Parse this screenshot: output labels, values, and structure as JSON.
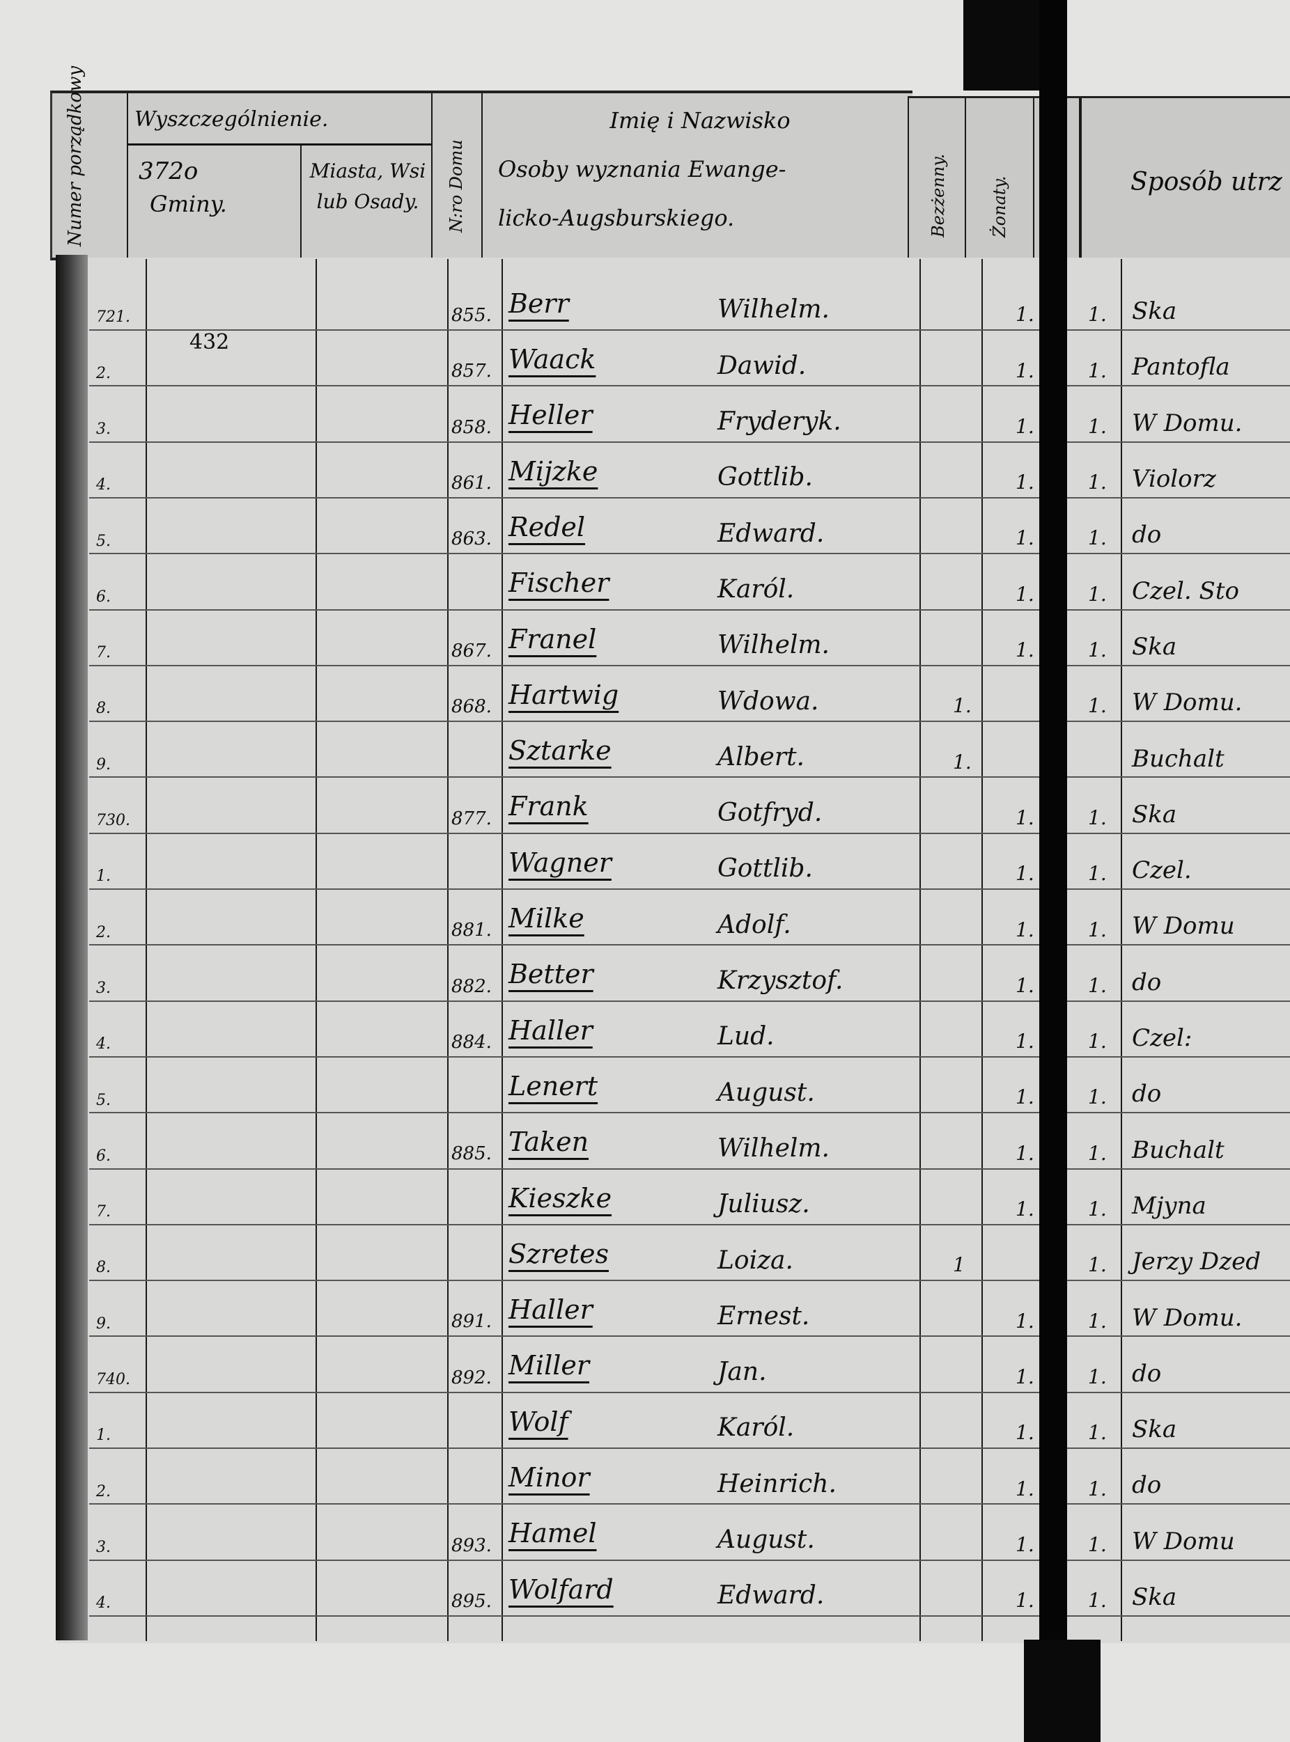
{
  "header": {
    "numer_porzadkowy": "Numer porządkowy",
    "wyszczegolnienie": "Wyszczególnienie.",
    "stamp_number": "372o",
    "gminy": "Gminy.",
    "miasta": "Miasta, Wsi lub Osady.",
    "nr_domu": "N:ro Domu",
    "imie_line1": "Imię i Nazwisko",
    "imie_line2": "Osoby wyznania Ewange-",
    "imie_line3": "licko-Augsburskiego.",
    "bezzenny": "Bezżenny.",
    "zonaty": "Żonaty.",
    "sposob": "Sposób utrz"
  },
  "annotation": "432",
  "rows": [
    {
      "num": "721.",
      "house": "855.",
      "surname": "Berr",
      "given": "Wilhelm.",
      "bezzenny": "",
      "zonaty": "1.",
      "col3": "1.",
      "occupation": "Ska"
    },
    {
      "num": "2.",
      "house": "857.",
      "surname": "Waack",
      "given": "Dawid.",
      "bezzenny": "",
      "zonaty": "1.",
      "col3": "1.",
      "occupation": "Pantofla"
    },
    {
      "num": "3.",
      "house": "858.",
      "surname": "Heller",
      "given": "Fryderyk.",
      "bezzenny": "",
      "zonaty": "1.",
      "col3": "1.",
      "occupation": "W Domu."
    },
    {
      "num": "4.",
      "house": "861.",
      "surname": "Mijzke",
      "given": "Gottlib.",
      "bezzenny": "",
      "zonaty": "1.",
      "col3": "1.",
      "occupation": "Violorz"
    },
    {
      "num": "5.",
      "house": "863.",
      "surname": "Redel",
      "given": "Edward.",
      "bezzenny": "",
      "zonaty": "1.",
      "col3": "1.",
      "occupation": "do"
    },
    {
      "num": "6.",
      "house": "",
      "surname": "Fischer",
      "given": "Karól.",
      "bezzenny": "",
      "zonaty": "1.",
      "col3": "1.",
      "occupation": "Czel. Sto"
    },
    {
      "num": "7.",
      "house": "867.",
      "surname": "Franel",
      "given": "Wilhelm.",
      "bezzenny": "",
      "zonaty": "1.",
      "col3": "1.",
      "occupation": "Ska"
    },
    {
      "num": "8.",
      "house": "868.",
      "surname": "Hartwig",
      "given": "Wdowa.",
      "bezzenny": "1.",
      "zonaty": "",
      "col3": "1.",
      "occupation": "W Domu."
    },
    {
      "num": "9.",
      "house": "",
      "surname": "Sztarke",
      "given": "Albert.",
      "bezzenny": "1.",
      "zonaty": "",
      "col3": "",
      "occupation": "Buchalt"
    },
    {
      "num": "730.",
      "house": "877.",
      "surname": "Frank",
      "given": "Gotfryd.",
      "bezzenny": "",
      "zonaty": "1.",
      "col3": "1.",
      "occupation": "Ska"
    },
    {
      "num": "1.",
      "house": "",
      "surname": "Wagner",
      "given": "Gottlib.",
      "bezzenny": "",
      "zonaty": "1.",
      "col3": "1.",
      "occupation": "Czel."
    },
    {
      "num": "2.",
      "house": "881.",
      "surname": "Milke",
      "given": "Adolf.",
      "bezzenny": "",
      "zonaty": "1.",
      "col3": "1.",
      "occupation": "W Domu"
    },
    {
      "num": "3.",
      "house": "882.",
      "surname": "Better",
      "given": "Krzysztof.",
      "bezzenny": "",
      "zonaty": "1.",
      "col3": "1.",
      "occupation": "do"
    },
    {
      "num": "4.",
      "house": "884.",
      "surname": "Haller",
      "given": "Lud.",
      "bezzenny": "",
      "zonaty": "1.",
      "col3": "1.",
      "occupation": "Czel:"
    },
    {
      "num": "5.",
      "house": "",
      "surname": "Lenert",
      "given": "August.",
      "bezzenny": "",
      "zonaty": "1.",
      "col3": "1.",
      "occupation": "do"
    },
    {
      "num": "6.",
      "house": "885.",
      "surname": "Taken",
      "given": "Wilhelm.",
      "bezzenny": "",
      "zonaty": "1.",
      "col3": "1.",
      "occupation": "Buchalt"
    },
    {
      "num": "7.",
      "house": "",
      "surname": "Kieszke",
      "given": "Juliusz.",
      "bezzenny": "",
      "zonaty": "1.",
      "col3": "1.",
      "occupation": "Mjyna"
    },
    {
      "num": "8.",
      "house": "",
      "surname": "Szretes",
      "given": "Loiza.",
      "bezzenny": "1",
      "zonaty": "",
      "col3": "1.",
      "occupation": "Jerzy Dzed"
    },
    {
      "num": "9.",
      "house": "891.",
      "surname": "Haller",
      "given": "Ernest.",
      "bezzenny": "",
      "zonaty": "1.",
      "col3": "1.",
      "occupation": "W Domu."
    },
    {
      "num": "740.",
      "house": "892.",
      "surname": "Miller",
      "given": "Jan.",
      "bezzenny": "",
      "zonaty": "1.",
      "col3": "1.",
      "occupation": "do"
    },
    {
      "num": "1.",
      "house": "",
      "surname": "Wolf",
      "given": "Karól.",
      "bezzenny": "",
      "zonaty": "1.",
      "col3": "1.",
      "occupation": "Ska"
    },
    {
      "num": "2.",
      "house": "",
      "surname": "Minor",
      "given": "Heinrich.",
      "bezzenny": "",
      "zonaty": "1.",
      "col3": "1.",
      "occupation": "do"
    },
    {
      "num": "3.",
      "house": "893.",
      "surname": "Hamel",
      "given": "August.",
      "bezzenny": "",
      "zonaty": "1.",
      "col3": "1.",
      "occupation": "W Domu"
    },
    {
      "num": "4.",
      "house": "895.",
      "surname": "Wolfard",
      "given": "Edward.",
      "bezzenny": "",
      "zonaty": "1.",
      "col3": "1.",
      "occupation": "Ska"
    }
  ]
}
